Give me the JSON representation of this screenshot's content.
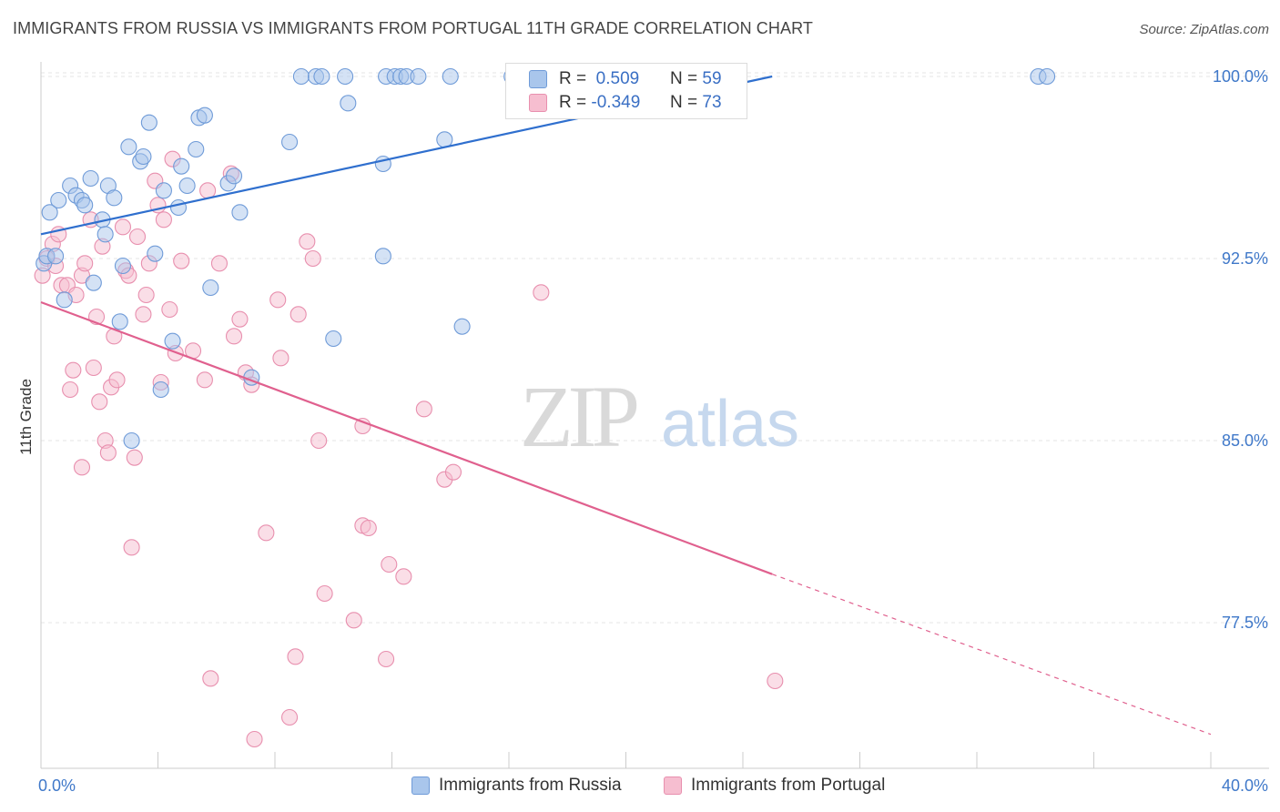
{
  "title": "IMMIGRANTS FROM RUSSIA VS IMMIGRANTS FROM PORTUGAL 11TH GRADE CORRELATION CHART",
  "source": "Source: ZipAtlas.com",
  "watermark": {
    "zip": "ZIP",
    "atlas": "atlas"
  },
  "colors": {
    "russia_fill": "#a9c6ec",
    "russia_stroke": "#6f9bd8",
    "russia_line": "#2f6fce",
    "portugal_fill": "#f6bed0",
    "portugal_stroke": "#e88fae",
    "portugal_line": "#e0608e",
    "axis_text": "#3f78c9",
    "grid": "#e6e6e6"
  },
  "stats": {
    "russia": {
      "r_label": "R =",
      "r_value": "0.509",
      "n_label": "N =",
      "n_value": "59"
    },
    "portugal": {
      "r_label": "R =",
      "r_value": "-0.349",
      "n_label": "N =",
      "n_value": "73"
    }
  },
  "legend": {
    "russia": "Immigrants from Russia",
    "portugal": "Immigrants from Portugal"
  },
  "chart_data": {
    "type": "scatter",
    "title": "IMMIGRANTS FROM RUSSIA VS IMMIGRANTS FROM PORTUGAL 11TH GRADE CORRELATION CHART",
    "xlabel": "",
    "ylabel": "11th Grade",
    "xlim": [
      0,
      40
    ],
    "ylim": [
      71.5,
      100.6
    ],
    "x_tick_labels": [
      "0.0%",
      "40.0%"
    ],
    "y_ticks": [
      77.5,
      85.0,
      92.5,
      100.0
    ],
    "y_tick_labels": [
      "77.5%",
      "85.0%",
      "92.5%",
      "100.0%"
    ],
    "grid": true,
    "legend_position": "bottom",
    "series": [
      {
        "name": "Immigrants from Russia",
        "points": [
          [
            0.1,
            92.3
          ],
          [
            0.2,
            92.6
          ],
          [
            0.3,
            94.4
          ],
          [
            0.5,
            92.6
          ],
          [
            0.6,
            94.9
          ],
          [
            0.8,
            90.8
          ],
          [
            1.0,
            95.5
          ],
          [
            1.2,
            95.1
          ],
          [
            1.4,
            94.9
          ],
          [
            1.5,
            94.7
          ],
          [
            1.7,
            95.8
          ],
          [
            1.8,
            91.5
          ],
          [
            2.1,
            94.1
          ],
          [
            2.2,
            93.5
          ],
          [
            2.3,
            95.5
          ],
          [
            2.5,
            95.0
          ],
          [
            2.7,
            89.9
          ],
          [
            2.8,
            92.2
          ],
          [
            3.0,
            97.1
          ],
          [
            3.1,
            85.0
          ],
          [
            3.4,
            96.5
          ],
          [
            3.5,
            96.7
          ],
          [
            3.7,
            98.1
          ],
          [
            3.9,
            92.7
          ],
          [
            4.1,
            87.1
          ],
          [
            4.2,
            95.3
          ],
          [
            4.5,
            89.1
          ],
          [
            4.7,
            94.6
          ],
          [
            4.8,
            96.3
          ],
          [
            5.0,
            95.5
          ],
          [
            5.3,
            97.0
          ],
          [
            5.4,
            98.3
          ],
          [
            5.6,
            98.4
          ],
          [
            5.8,
            91.3
          ],
          [
            6.4,
            95.6
          ],
          [
            6.6,
            95.9
          ],
          [
            6.8,
            94.4
          ],
          [
            7.2,
            87.6
          ],
          [
            8.5,
            97.3
          ],
          [
            8.9,
            100.0
          ],
          [
            9.4,
            100.0
          ],
          [
            9.6,
            100.0
          ],
          [
            10.0,
            89.2
          ],
          [
            10.4,
            100.0
          ],
          [
            10.5,
            98.9
          ],
          [
            11.7,
            96.4
          ],
          [
            11.7,
            92.6
          ],
          [
            11.8,
            100.0
          ],
          [
            12.1,
            100.0
          ],
          [
            12.3,
            100.0
          ],
          [
            12.5,
            100.0
          ],
          [
            12.9,
            100.0
          ],
          [
            13.8,
            97.4
          ],
          [
            14.0,
            100.0
          ],
          [
            14.4,
            89.7
          ],
          [
            16.1,
            100.0
          ],
          [
            21.7,
            100.0
          ],
          [
            34.1,
            100.0
          ],
          [
            34.4,
            100.0
          ]
        ]
      },
      {
        "name": "Immigrants from Portugal",
        "points": [
          [
            0.05,
            91.8
          ],
          [
            0.2,
            92.5
          ],
          [
            0.4,
            93.1
          ],
          [
            0.5,
            92.2
          ],
          [
            0.6,
            93.5
          ],
          [
            0.7,
            91.4
          ],
          [
            0.9,
            91.4
          ],
          [
            1.0,
            87.1
          ],
          [
            1.1,
            87.9
          ],
          [
            1.2,
            91.0
          ],
          [
            1.4,
            91.8
          ],
          [
            1.4,
            83.9
          ],
          [
            1.5,
            92.3
          ],
          [
            1.7,
            94.1
          ],
          [
            1.8,
            88.0
          ],
          [
            1.9,
            90.1
          ],
          [
            2.0,
            86.6
          ],
          [
            2.1,
            93.0
          ],
          [
            2.2,
            85.0
          ],
          [
            2.3,
            84.5
          ],
          [
            2.4,
            87.2
          ],
          [
            2.5,
            89.3
          ],
          [
            2.6,
            87.5
          ],
          [
            2.8,
            93.8
          ],
          [
            2.9,
            92.0
          ],
          [
            3.0,
            91.8
          ],
          [
            3.1,
            80.6
          ],
          [
            3.2,
            84.3
          ],
          [
            3.3,
            93.4
          ],
          [
            3.5,
            90.2
          ],
          [
            3.6,
            91.0
          ],
          [
            3.7,
            92.3
          ],
          [
            3.9,
            95.7
          ],
          [
            4.0,
            94.7
          ],
          [
            4.1,
            87.4
          ],
          [
            4.2,
            94.1
          ],
          [
            4.4,
            90.4
          ],
          [
            4.5,
            96.6
          ],
          [
            4.6,
            88.6
          ],
          [
            4.8,
            92.4
          ],
          [
            5.2,
            88.7
          ],
          [
            5.6,
            87.5
          ],
          [
            5.7,
            95.3
          ],
          [
            5.8,
            75.2
          ],
          [
            6.1,
            92.3
          ],
          [
            6.5,
            96.0
          ],
          [
            6.6,
            89.3
          ],
          [
            6.8,
            90.0
          ],
          [
            7.0,
            87.8
          ],
          [
            7.2,
            87.3
          ],
          [
            7.3,
            72.7
          ],
          [
            7.7,
            81.2
          ],
          [
            8.1,
            90.8
          ],
          [
            8.2,
            88.4
          ],
          [
            8.5,
            73.6
          ],
          [
            8.7,
            76.1
          ],
          [
            8.8,
            90.2
          ],
          [
            9.1,
            93.2
          ],
          [
            9.3,
            92.5
          ],
          [
            9.5,
            85.0
          ],
          [
            9.7,
            78.7
          ],
          [
            10.7,
            77.6
          ],
          [
            11.0,
            85.6
          ],
          [
            11.0,
            81.5
          ],
          [
            11.2,
            81.4
          ],
          [
            11.8,
            76.0
          ],
          [
            11.9,
            79.9
          ],
          [
            12.4,
            79.4
          ],
          [
            13.1,
            86.3
          ],
          [
            13.8,
            83.4
          ],
          [
            14.1,
            83.7
          ],
          [
            17.1,
            91.1
          ],
          [
            25.1,
            75.1
          ]
        ]
      }
    ],
    "trend_lines": [
      {
        "series": "Immigrants from Russia",
        "x_start": 0,
        "y_start": 93.5,
        "x_end": 25,
        "y_end": 100.0
      },
      {
        "series": "Immigrants from Portugal",
        "x_start": 0,
        "y_start": 90.7,
        "x_end": 25,
        "y_end": 79.5,
        "dashed_to_x": 40,
        "dashed_to_y": 72.9
      }
    ]
  }
}
